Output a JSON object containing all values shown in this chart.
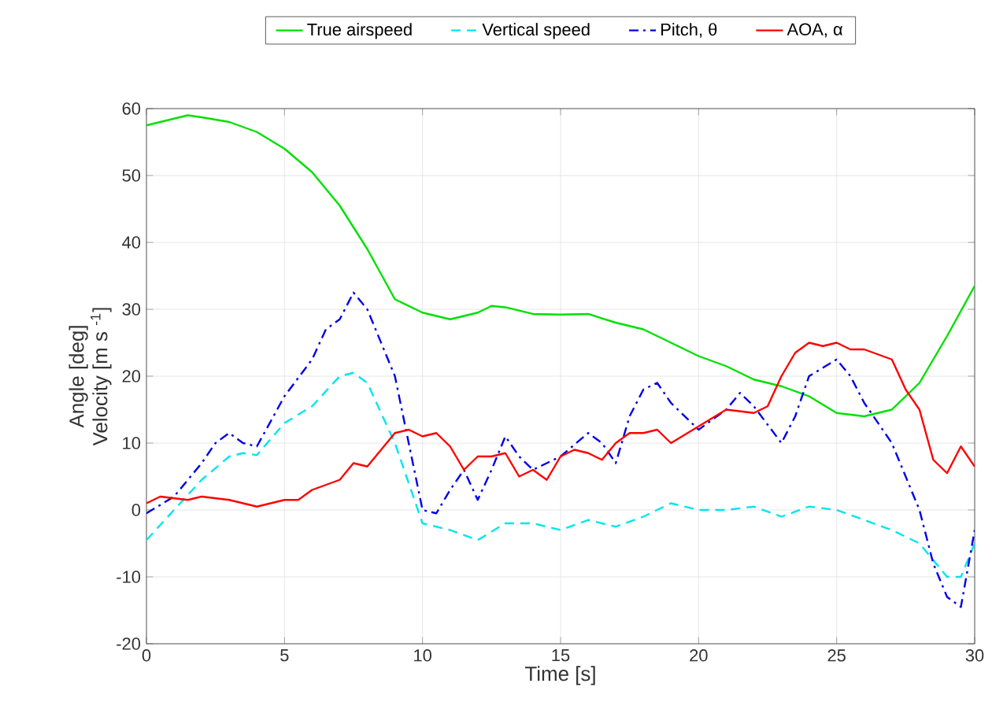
{
  "chart_data": {
    "type": "line",
    "xlabel": "Time [s]",
    "ylabel": "Angle [deg]\nVelocity [m s $^{-1}$]",
    "xlim": [
      0,
      30
    ],
    "ylim": [
      -20,
      60
    ],
    "xticks": [
      0,
      5,
      10,
      15,
      20,
      25,
      30
    ],
    "yticks": [
      -20,
      -10,
      0,
      10,
      20,
      30,
      40,
      50,
      60
    ],
    "grid": true,
    "legend": "top",
    "marker": "none",
    "series": [
      {
        "name": "True airspeed",
        "color": "#00e000",
        "line_style": "solid",
        "x": [
          0,
          1,
          1.5,
          2,
          3,
          4,
          5,
          6,
          7,
          8,
          9,
          10,
          10.5,
          11,
          12,
          12.5,
          13,
          14,
          15,
          16,
          17,
          18,
          19,
          20,
          21,
          22,
          23,
          24,
          25,
          26,
          27,
          28,
          29,
          30
        ],
        "values": [
          57.5,
          58.5,
          59,
          58.7,
          58,
          56.5,
          54,
          50.5,
          45.5,
          39,
          31.5,
          29.5,
          29,
          28.5,
          29.5,
          30.5,
          30.3,
          29.3,
          29.2,
          29.3,
          28,
          27,
          25,
          23,
          21.5,
          19.5,
          18.5,
          17,
          14.5,
          14,
          15,
          19,
          26,
          33.5
        ]
      },
      {
        "name": "Vertical speed",
        "color": "#00e5ee",
        "line_style": "dashed",
        "x": [
          0,
          1,
          2,
          3,
          3.5,
          4,
          5,
          6,
          7,
          7.5,
          8,
          9,
          10,
          11,
          12,
          13,
          14,
          15,
          16,
          17,
          18,
          19,
          20,
          21,
          22,
          23,
          24,
          25,
          26,
          27,
          28,
          29,
          29.5,
          30
        ],
        "values": [
          -4.5,
          0,
          4.5,
          8,
          8.5,
          8.2,
          13,
          15.5,
          20,
          20.5,
          19,
          10,
          -2,
          -3,
          -4.5,
          -2,
          -2,
          -3,
          -1.5,
          -2.5,
          -1,
          1,
          0,
          0,
          0.5,
          -1,
          0.5,
          0,
          -1.5,
          -3,
          -5,
          -10,
          -10,
          -5
        ]
      },
      {
        "name": "Pitch,  θ",
        "color": "#0000e6",
        "line_style": "dashdot",
        "x": [
          0,
          1,
          2,
          2.5,
          3,
          3.5,
          4,
          5,
          6,
          6.5,
          7,
          7.5,
          8,
          9,
          9.5,
          10,
          10.5,
          11,
          11.5,
          12,
          12.5,
          13,
          13.5,
          14,
          15,
          16,
          16.5,
          17,
          17.5,
          18,
          18.5,
          19,
          20,
          21,
          21.5,
          22,
          23,
          23.5,
          24,
          25,
          25.5,
          26,
          27,
          28,
          28.5,
          29,
          29.5,
          30
        ],
        "values": [
          -0.5,
          2,
          7,
          10,
          11.5,
          10,
          9.5,
          17,
          22.5,
          27,
          28.5,
          32.5,
          30,
          20,
          10,
          0,
          -0.5,
          3,
          6,
          1.5,
          6,
          11,
          8,
          6,
          8,
          11.5,
          10,
          7,
          14,
          18,
          19,
          16,
          12,
          15,
          17.5,
          15.5,
          10,
          14,
          20,
          22.5,
          20,
          16,
          10,
          0,
          -8,
          -13,
          -14.5,
          -3
        ]
      },
      {
        "name": "AOA,  α",
        "color": "#ff0000",
        "line_style": "solid",
        "x": [
          0,
          0.5,
          1.5,
          2,
          3,
          4,
          5,
          5.5,
          6,
          7,
          7.5,
          8,
          8.5,
          9,
          9.5,
          10,
          10.5,
          11,
          11.5,
          12,
          12.5,
          13,
          13.5,
          14,
          14.5,
          15,
          15.5,
          16,
          16.5,
          17,
          17.5,
          18,
          18.5,
          19,
          20,
          21,
          22,
          22.5,
          23,
          23.5,
          24,
          24.5,
          25,
          25.5,
          26,
          27,
          27.5,
          28,
          28.5,
          29,
          29.5,
          30
        ],
        "values": [
          1,
          2,
          1.5,
          2,
          1.5,
          0.5,
          1.5,
          1.5,
          3,
          4.5,
          7,
          6.5,
          9,
          11.5,
          12,
          11,
          11.5,
          9.5,
          6,
          8,
          8,
          8.5,
          5,
          6,
          4.5,
          8,
          9,
          8.5,
          7.5,
          10,
          11.5,
          11.5,
          12,
          10,
          12.5,
          15,
          14.5,
          15.5,
          20,
          23.5,
          25,
          24.5,
          25,
          24,
          24,
          22.5,
          18,
          15,
          7.5,
          5.5,
          9.5,
          6.5
        ]
      }
    ]
  }
}
